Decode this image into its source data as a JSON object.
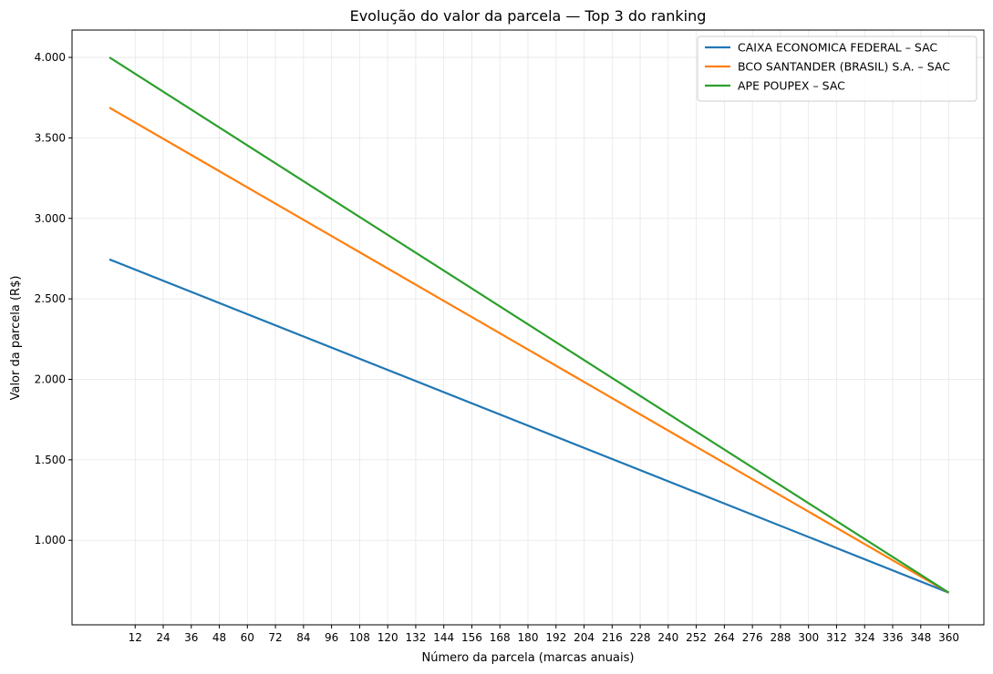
{
  "chart_data": {
    "type": "line",
    "title": "Evolução do valor da parcela — Top 3 do ranking",
    "xlabel": "Número da parcela (marcas anuais)",
    "ylabel": "Valor da parcela (R$)",
    "xlim": [
      -15,
      375
    ],
    "ylim": [
      475,
      4170
    ],
    "xticks": [
      12,
      24,
      36,
      48,
      60,
      72,
      84,
      96,
      108,
      120,
      132,
      144,
      156,
      168,
      180,
      192,
      204,
      216,
      228,
      240,
      252,
      264,
      276,
      288,
      300,
      312,
      324,
      336,
      348,
      360
    ],
    "yticks": [
      {
        "value": 1000,
        "label": "1.000"
      },
      {
        "value": 1500,
        "label": "1.500"
      },
      {
        "value": 2000,
        "label": "2.000"
      },
      {
        "value": 2500,
        "label": "2.500"
      },
      {
        "value": 3000,
        "label": "3.000"
      },
      {
        "value": 3500,
        "label": "3.500"
      },
      {
        "value": 4000,
        "label": "4.000"
      }
    ],
    "grid": true,
    "legend_position": "top-right",
    "series": [
      {
        "name": "CAIXA ECONOMICA FEDERAL – SAC",
        "color": "#1f77b4",
        "x": [
          1,
          360
        ],
        "y": [
          2745,
          675
        ]
      },
      {
        "name": "BCO SANTANDER (BRASIL) S.A. – SAC",
        "color": "#ff7f0e",
        "x": [
          1,
          360
        ],
        "y": [
          3688,
          675
        ]
      },
      {
        "name": "APE POUPEX – SAC",
        "color": "#2ca02c",
        "x": [
          1,
          360
        ],
        "y": [
          4000,
          675
        ]
      }
    ]
  }
}
